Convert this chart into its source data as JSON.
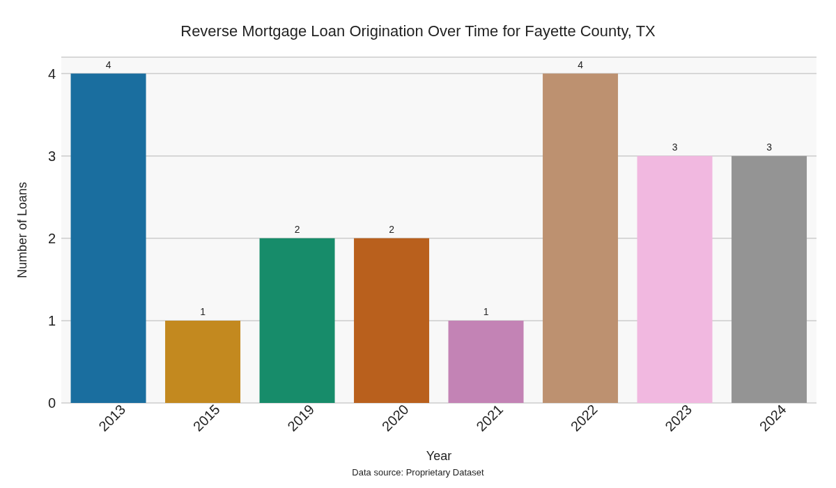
{
  "chart_data": {
    "type": "bar",
    "title": "Reverse Mortgage Loan Origination Over Time for Fayette County, TX",
    "xlabel": "Year",
    "ylabel": "Number of Loans",
    "categories": [
      "2013",
      "2015",
      "2019",
      "2020",
      "2021",
      "2022",
      "2023",
      "2024"
    ],
    "values": [
      4,
      1,
      2,
      2,
      1,
      4,
      3,
      3
    ],
    "colors": [
      "#1a6e9f",
      "#c3891f",
      "#178c6a",
      "#b9601d",
      "#c383b5",
      "#bd9170",
      "#f1b8e0",
      "#949494"
    ],
    "ylim": [
      0,
      4.2
    ],
    "yticks": [
      0,
      1,
      2,
      3,
      4
    ],
    "grid": "y",
    "data_labels": true,
    "annotations": [
      "Data source: Proprietary Dataset"
    ]
  }
}
